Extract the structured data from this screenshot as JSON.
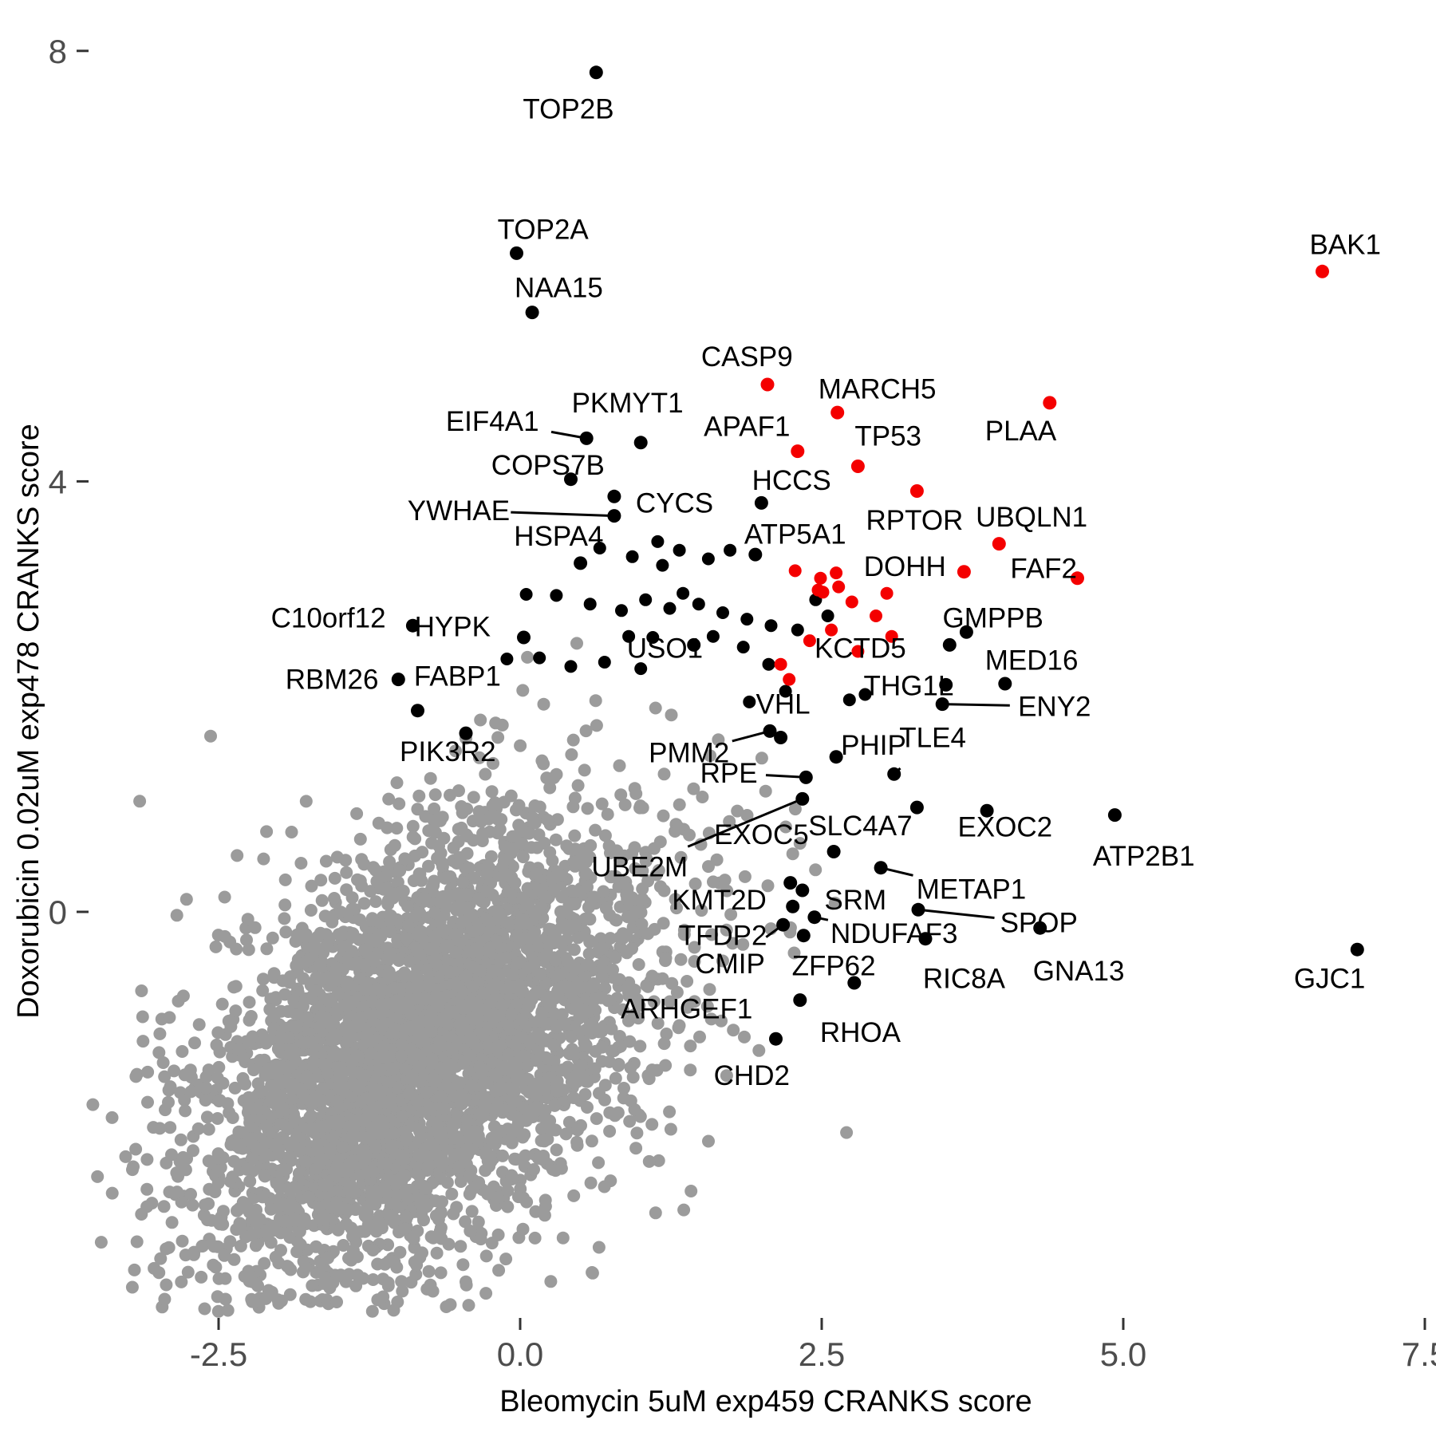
{
  "chart_data": {
    "type": "scatter",
    "title": "",
    "xlabel": "Bleomycin 5uM exp459 CRANKS score",
    "ylabel": "Doxorubicin 0.02uM exp478 CRANKS score",
    "x_ticks": {
      "values": [
        -2.5,
        0,
        2.5,
        5,
        7.5
      ],
      "labels": [
        "-2.5",
        "0.0",
        "2.5",
        "5.0",
        "7.5"
      ]
    },
    "y_ticks": {
      "values": [
        0,
        4,
        8
      ],
      "labels": [
        "0",
        "4",
        "8"
      ]
    },
    "xlim": [
      -4.3,
      7.6
    ],
    "ylim": [
      -4.9,
      8.2
    ],
    "grid": false,
    "legend": false,
    "colors": {
      "highlight_red": "#f40000",
      "point_black": "#000000",
      "background_gray": "#9b9b9b",
      "tick_text": "#4d4d4d",
      "tick_mark": "#333333",
      "label_text": "#000000"
    },
    "labeled_points": [
      {
        "gene": "TOP2B",
        "x": 0.63,
        "y": 7.8,
        "lx": 0.4,
        "ly": 7.46,
        "color": "black",
        "leader": false
      },
      {
        "gene": "TOP2A",
        "x": -0.03,
        "y": 6.12,
        "lx": 0.19,
        "ly": 6.34,
        "color": "black",
        "leader": false
      },
      {
        "gene": "NAA15",
        "x": 0.1,
        "y": 5.57,
        "lx": 0.32,
        "ly": 5.8,
        "color": "black",
        "leader": false
      },
      {
        "gene": "BAK1",
        "x": 6.65,
        "y": 5.95,
        "lx": 6.84,
        "ly": 6.2,
        "color": "red",
        "leader": false
      },
      {
        "gene": "CASP9",
        "x": 2.05,
        "y": 4.9,
        "lx": 1.88,
        "ly": 5.16,
        "color": "red",
        "leader": false
      },
      {
        "gene": "MARCH5",
        "x": 2.63,
        "y": 4.64,
        "lx": 2.96,
        "ly": 4.86,
        "color": "red",
        "leader": false
      },
      {
        "gene": "PLAA",
        "x": 4.39,
        "y": 4.73,
        "lx": 4.15,
        "ly": 4.47,
        "color": "red",
        "leader": false
      },
      {
        "gene": "APAF1",
        "x": 2.3,
        "y": 4.28,
        "lx": 1.88,
        "ly": 4.51,
        "color": "red",
        "leader": false
      },
      {
        "gene": "TP53",
        "x": 2.8,
        "y": 4.14,
        "lx": 3.05,
        "ly": 4.42,
        "color": "red",
        "leader": false
      },
      {
        "gene": "PKMYT1",
        "x": 1.0,
        "y": 4.36,
        "lx": 0.89,
        "ly": 4.73,
        "color": "black",
        "leader": false
      },
      {
        "gene": "EIF4A1",
        "x": 0.55,
        "y": 4.4,
        "lx": -0.23,
        "ly": 4.56,
        "color": "black",
        "leader": true
      },
      {
        "gene": "COPS7B",
        "x": 0.42,
        "y": 4.02,
        "lx": 0.23,
        "ly": 4.15,
        "color": "black",
        "leader": false
      },
      {
        "gene": "HCCS",
        "x": 2.0,
        "y": 3.8,
        "lx": 2.25,
        "ly": 4.01,
        "color": "black",
        "leader": false
      },
      {
        "gene": "CYCS",
        "x": 0.78,
        "y": 3.86,
        "lx": 1.28,
        "ly": 3.8,
        "color": "black",
        "leader": false
      },
      {
        "gene": "YWHAE",
        "x": 0.78,
        "y": 3.68,
        "lx": -0.51,
        "ly": 3.73,
        "color": "black",
        "leader": true
      },
      {
        "gene": "HSPA4",
        "x": 0.5,
        "y": 3.24,
        "lx": 0.32,
        "ly": 3.49,
        "color": "black",
        "leader": false
      },
      {
        "gene": "ATP5A1",
        "x": 1.95,
        "y": 3.32,
        "lx": 2.28,
        "ly": 3.51,
        "color": "black",
        "leader": false
      },
      {
        "gene": "RPTOR",
        "x": 3.29,
        "y": 3.91,
        "lx": 3.27,
        "ly": 3.64,
        "color": "red",
        "leader": false
      },
      {
        "gene": "UBQLN1",
        "x": 3.97,
        "y": 3.42,
        "lx": 4.24,
        "ly": 3.67,
        "color": "red",
        "leader": false
      },
      {
        "gene": "DOHH",
        "x": 3.68,
        "y": 3.16,
        "lx": 3.19,
        "ly": 3.21,
        "color": "red",
        "leader": false
      },
      {
        "gene": "FAF2",
        "x": 4.62,
        "y": 3.1,
        "lx": 4.34,
        "ly": 3.19,
        "color": "red",
        "leader": false
      },
      {
        "gene": "HYPK",
        "x": 0.03,
        "y": 2.55,
        "lx": -0.56,
        "ly": 2.65,
        "color": "black",
        "leader": false
      },
      {
        "gene": "USO1",
        "x": 1.44,
        "y": 2.48,
        "lx": 1.2,
        "ly": 2.45,
        "color": "black",
        "leader": false
      },
      {
        "gene": "C10orf12",
        "x": -0.89,
        "y": 2.66,
        "lx": -1.59,
        "ly": 2.73,
        "color": "black",
        "leader": false
      },
      {
        "gene": "GMPPB",
        "x": 3.7,
        "y": 2.6,
        "lx": 3.92,
        "ly": 2.73,
        "color": "black",
        "leader": false
      },
      {
        "gene": "RBM26",
        "x": -1.01,
        "y": 2.16,
        "lx": -1.56,
        "ly": 2.16,
        "color": "black",
        "leader": false
      },
      {
        "gene": "FABP1",
        "x": -0.85,
        "y": 1.87,
        "lx": -0.52,
        "ly": 2.19,
        "color": "black",
        "leader": false
      },
      {
        "gene": "KCTD5",
        "x": 3.56,
        "y": 2.48,
        "lx": 2.82,
        "ly": 2.45,
        "color": "black",
        "leader": false
      },
      {
        "gene": "MED16",
        "x": 4.02,
        "y": 2.12,
        "lx": 4.24,
        "ly": 2.34,
        "color": "black",
        "leader": false
      },
      {
        "gene": "PIK3R2",
        "x": -0.45,
        "y": 1.66,
        "lx": -0.6,
        "ly": 1.49,
        "color": "black",
        "leader": false
      },
      {
        "gene": "VHL",
        "x": 2.16,
        "y": 1.62,
        "lx": 2.18,
        "ly": 1.93,
        "color": "black",
        "leader": false
      },
      {
        "gene": "THG1L",
        "x": 3.53,
        "y": 2.11,
        "lx": 3.22,
        "ly": 2.1,
        "color": "black",
        "leader": false
      },
      {
        "gene": "ENY2",
        "x": 3.5,
        "y": 1.93,
        "lx": 4.43,
        "ly": 1.91,
        "color": "black",
        "leader": true
      },
      {
        "gene": "PMM2",
        "x": 2.07,
        "y": 1.68,
        "lx": 1.4,
        "ly": 1.48,
        "color": "black",
        "leader": true
      },
      {
        "gene": "RPE",
        "x": 2.37,
        "y": 1.25,
        "lx": 1.73,
        "ly": 1.29,
        "color": "black",
        "leader": true
      },
      {
        "gene": "PHIP",
        "x": 2.62,
        "y": 1.44,
        "lx": 2.93,
        "ly": 1.55,
        "color": "black",
        "leader": false
      },
      {
        "gene": "TLE4",
        "x": 3.1,
        "y": 1.28,
        "lx": 3.42,
        "ly": 1.62,
        "color": "black",
        "leader": true
      },
      {
        "gene": "UBE2M",
        "x": 2.34,
        "y": 1.05,
        "lx": 0.99,
        "ly": 0.42,
        "color": "black",
        "leader": true
      },
      {
        "gene": "EXOC5",
        "x": 2.6,
        "y": 0.56,
        "lx": 2.0,
        "ly": 0.72,
        "color": "black",
        "leader": false
      },
      {
        "gene": "SLC4A7",
        "x": 3.29,
        "y": 0.97,
        "lx": 2.82,
        "ly": 0.8,
        "color": "black",
        "leader": false
      },
      {
        "gene": "EXOC2",
        "x": 3.87,
        "y": 0.94,
        "lx": 4.02,
        "ly": 0.79,
        "color": "black",
        "leader": false
      },
      {
        "gene": "ATP2B1",
        "x": 4.93,
        "y": 0.9,
        "lx": 5.17,
        "ly": 0.52,
        "color": "black",
        "leader": false
      },
      {
        "gene": "KMT2D",
        "x": 2.24,
        "y": 0.27,
        "lx": 1.65,
        "ly": 0.11,
        "color": "black",
        "leader": false
      },
      {
        "gene": "SRM",
        "x": 2.34,
        "y": 0.2,
        "lx": 2.78,
        "ly": 0.11,
        "color": "black",
        "leader": false
      },
      {
        "gene": "METAP1",
        "x": 2.99,
        "y": 0.41,
        "lx": 3.74,
        "ly": 0.21,
        "color": "black",
        "leader": true
      },
      {
        "gene": "TFDP2",
        "x": 2.26,
        "y": 0.05,
        "lx": 1.68,
        "ly": -0.22,
        "color": "black",
        "leader": false
      },
      {
        "gene": "NDUFAF3",
        "x": 2.44,
        "y": -0.05,
        "lx": 3.1,
        "ly": -0.2,
        "color": "black",
        "leader": true
      },
      {
        "gene": "SPOP",
        "x": 3.3,
        "y": 0.02,
        "lx": 4.3,
        "ly": -0.1,
        "color": "black",
        "leader": true
      },
      {
        "gene": "CMIP",
        "x": 2.18,
        "y": -0.12,
        "lx": 1.74,
        "ly": -0.48,
        "color": "black",
        "leader": true
      },
      {
        "gene": "ZFP62",
        "x": 2.35,
        "y": -0.22,
        "lx": 2.6,
        "ly": -0.5,
        "color": "black",
        "leader": false
      },
      {
        "gene": "RIC8A",
        "x": 3.36,
        "y": -0.25,
        "lx": 3.68,
        "ly": -0.62,
        "color": "black",
        "leader": false
      },
      {
        "gene": "GNA13",
        "x": 4.31,
        "y": -0.15,
        "lx": 4.63,
        "ly": -0.55,
        "color": "black",
        "leader": false
      },
      {
        "gene": "ARHGEF1",
        "x": 2.32,
        "y": -0.82,
        "lx": 1.38,
        "ly": -0.9,
        "color": "black",
        "leader": false
      },
      {
        "gene": "RHOA",
        "x": 2.77,
        "y": -0.66,
        "lx": 2.82,
        "ly": -1.12,
        "color": "black",
        "leader": false
      },
      {
        "gene": "CHD2",
        "x": 2.12,
        "y": -1.18,
        "lx": 1.92,
        "ly": -1.52,
        "color": "black",
        "leader": false
      },
      {
        "gene": "GJC1",
        "x": 6.94,
        "y": -0.35,
        "lx": 6.71,
        "ly": -0.62,
        "color": "black",
        "leader": false
      }
    ],
    "unlabeled_black_points": [
      [
        0.66,
        3.38
      ],
      [
        0.93,
        3.3
      ],
      [
        1.14,
        3.44
      ],
      [
        1.32,
        3.36
      ],
      [
        1.56,
        3.28
      ],
      [
        1.74,
        3.36
      ],
      [
        1.18,
        3.22
      ],
      [
        0.3,
        2.94
      ],
      [
        0.58,
        2.86
      ],
      [
        0.84,
        2.8
      ],
      [
        1.04,
        2.9
      ],
      [
        1.24,
        2.82
      ],
      [
        1.48,
        2.86
      ],
      [
        1.68,
        2.78
      ],
      [
        1.88,
        2.72
      ],
      [
        2.08,
        2.66
      ],
      [
        2.45,
        2.9
      ],
      [
        1.35,
        2.96
      ],
      [
        0.9,
        2.56
      ],
      [
        0.16,
        2.36
      ],
      [
        0.42,
        2.28
      ],
      [
        0.7,
        2.32
      ],
      [
        1.0,
        2.26
      ],
      [
        1.6,
        2.56
      ],
      [
        1.85,
        2.46
      ],
      [
        2.06,
        2.3
      ],
      [
        2.3,
        2.62
      ],
      [
        2.73,
        1.97
      ],
      [
        2.86,
        2.02
      ],
      [
        -0.11,
        2.35
      ],
      [
        1.9,
        1.95
      ],
      [
        2.55,
        2.75
      ],
      [
        0.05,
        2.95
      ],
      [
        1.1,
        2.55
      ],
      [
        2.2,
        2.05
      ]
    ],
    "unlabeled_red_points": [
      [
        2.28,
        3.17
      ],
      [
        2.49,
        3.1
      ],
      [
        2.47,
        2.99
      ],
      [
        2.62,
        3.15
      ],
      [
        3.04,
        2.96
      ],
      [
        2.75,
        2.88
      ],
      [
        2.95,
        2.75
      ],
      [
        2.58,
        2.62
      ],
      [
        2.4,
        2.52
      ],
      [
        2.8,
        2.42
      ],
      [
        3.08,
        2.56
      ],
      [
        2.16,
        2.3
      ],
      [
        2.23,
        2.16
      ],
      [
        2.51,
        2.97
      ],
      [
        2.64,
        3.02
      ]
    ],
    "background_cloud": {
      "description": "dense unlabeled gray gene cloud",
      "n_core": 4000,
      "n_spread": 240,
      "center_x": -0.85,
      "center_y": -1.3,
      "sd_x": 0.92,
      "sd_y": 0.92,
      "slope": 0.55,
      "spread_sd_x": 1.65,
      "spread_sd_y": 1.5,
      "seed": 42
    }
  }
}
